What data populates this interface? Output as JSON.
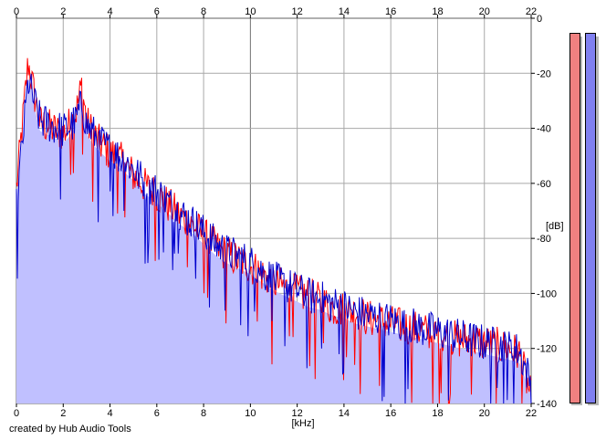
{
  "chart_data": {
    "type": "area",
    "title": "",
    "xlabel": "[kHz]",
    "ylabel": "[dB]",
    "xlim": [
      0,
      22
    ],
    "ylim": [
      -140,
      0
    ],
    "x_ticks": [
      "0",
      "2",
      "4",
      "6",
      "8",
      "10",
      "12",
      "14",
      "16",
      "18",
      "20",
      "22"
    ],
    "y_ticks": [
      "0",
      "-20",
      "-40",
      "-60",
      "-80",
      "-100",
      "-120",
      "-140"
    ],
    "grid": true,
    "x_axis_position": "top and bottom",
    "y_axis_position": "right",
    "fill_color": "#c0c0ff",
    "series": [
      {
        "color": "#ff0000",
        "x": [
          0,
          0.5,
          1,
          1.5,
          2,
          2.5,
          2.8,
          3,
          3.5,
          4,
          4.5,
          5,
          5.5,
          6,
          6.5,
          7,
          7.5,
          8,
          8.5,
          9,
          9.5,
          10,
          10.5,
          11,
          11.5,
          12,
          12.5,
          13,
          13.5,
          14,
          14.5,
          15,
          15.5,
          16,
          16.5,
          17,
          17.5,
          18,
          18.5,
          19,
          19.5,
          20,
          20.5,
          21,
          21.5,
          22
        ],
        "values": [
          -62,
          -16,
          -38,
          -40,
          -42,
          -36,
          -24,
          -38,
          -45,
          -49,
          -52,
          -57,
          -61,
          -64,
          -68,
          -72,
          -75,
          -79,
          -83,
          -86,
          -88,
          -90,
          -93,
          -96,
          -98,
          -100,
          -101,
          -103,
          -105,
          -106,
          -107,
          -109,
          -110,
          -111,
          -112,
          -113,
          -114,
          -115,
          -116,
          -117,
          -117,
          -118,
          -119,
          -120,
          -122,
          -138
        ]
      },
      {
        "color": "#0000cc",
        "x": [
          0,
          0.5,
          1,
          1.5,
          2,
          2.5,
          2.8,
          3,
          3.5,
          4,
          4.5,
          5,
          5.5,
          6,
          6.5,
          7,
          7.5,
          8,
          8.5,
          9,
          9.5,
          10,
          10.5,
          11,
          11.5,
          12,
          12.5,
          13,
          13.5,
          14,
          14.5,
          15,
          15.5,
          16,
          16.5,
          17,
          17.5,
          18,
          18.5,
          19,
          19.5,
          20,
          20.5,
          21,
          21.5,
          22
        ],
        "values": [
          -68,
          -23,
          -37,
          -39,
          -41,
          -38,
          -31,
          -39,
          -44,
          -48,
          -51,
          -55,
          -60,
          -63,
          -67,
          -71,
          -74,
          -78,
          -82,
          -85,
          -87,
          -89,
          -92,
          -95,
          -97,
          -99,
          -101,
          -102,
          -104,
          -105,
          -107,
          -108,
          -109,
          -110,
          -111,
          -112,
          -113,
          -114,
          -115,
          -116,
          -117,
          -118,
          -119,
          -120,
          -121,
          -133
        ]
      }
    ],
    "level_meters": [
      {
        "color": "#f08080",
        "shadow_color": "#b8b8b8"
      },
      {
        "color": "#8080f0",
        "shadow_color": "#b8b8b8"
      }
    ]
  },
  "footer": {
    "credit": "created by Hub Audio Tools"
  }
}
